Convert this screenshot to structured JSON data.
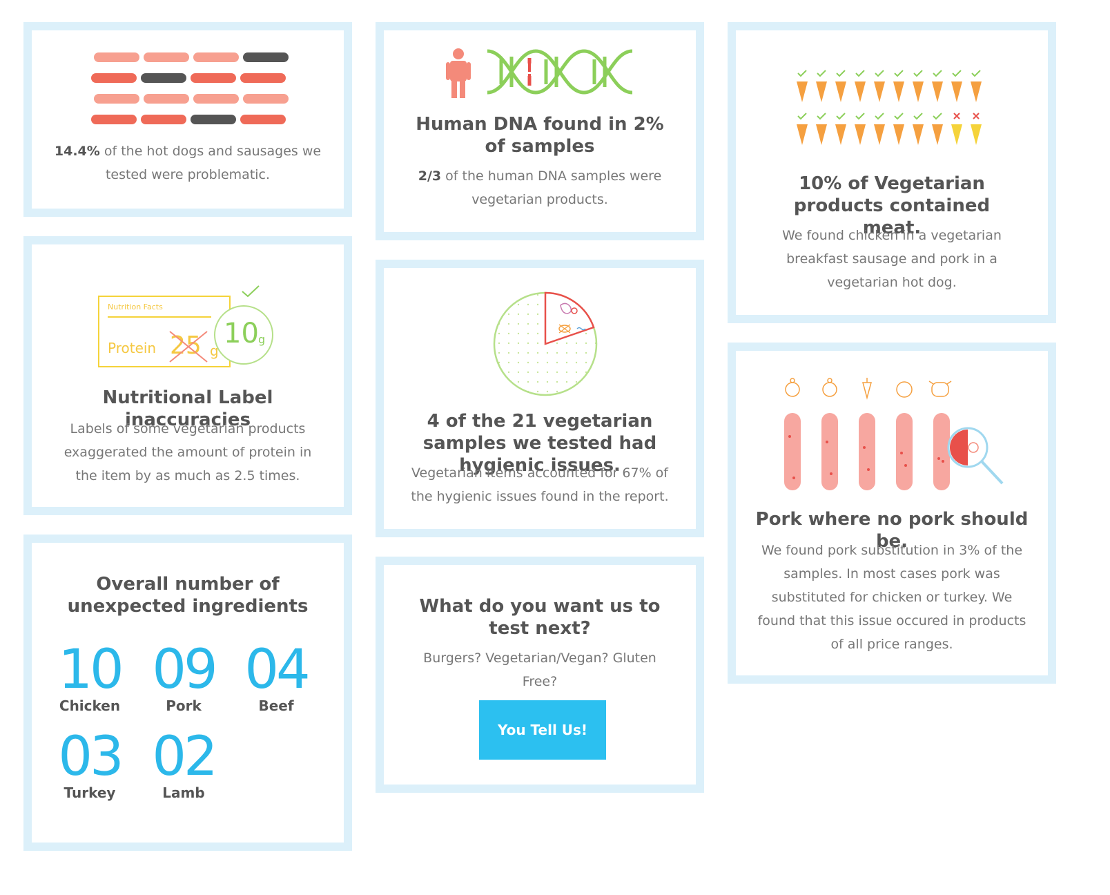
{
  "cards": {
    "hotdogs": {
      "stat": "14.4%",
      "text": " of the hot dogs and sausages we tested were problematic."
    },
    "dna": {
      "title": "Human DNA found in 2% of samples",
      "stat": "2/3",
      "text": " of the human DNA samples were vegetarian products."
    },
    "vegetarian_meat": {
      "title": "10% of Vegetarian products contained meat.",
      "text": "We found chicken in a vegetarian breakfast sausage and pork in a vegetarian hot dog."
    },
    "nutrition": {
      "label_heading": "Nutrition Facts",
      "label_protein": "Protein",
      "label_old": "25",
      "label_unit": "g",
      "label_new": "10",
      "label_new_unit": "g",
      "title": "Nutritional Label inaccuracies",
      "text": "Labels of some vegetarian products exaggerated the amount of protein in the item by as much as 2.5 times."
    },
    "hygiene": {
      "title": "4 of the 21 vegetarian samples we tested had hygienic issues.",
      "text": "Vegetarian items accounted for 67% of the hygienic issues found in the report."
    },
    "pork": {
      "title": "Pork where no pork should be.",
      "text": "We found pork substitution in 3% of the samples. In most cases pork was substituted for chicken or turkey. We found that this issue occured in products of all price ranges."
    },
    "ingredients": {
      "title": "Overall number of unexpected ingredients",
      "stats": [
        {
          "value": "10",
          "label": "Chicken"
        },
        {
          "value": "09",
          "label": "Pork"
        },
        {
          "value": "04",
          "label": "Beef"
        },
        {
          "value": "03",
          "label": "Turkey"
        },
        {
          "value": "02",
          "label": "Lamb"
        }
      ]
    },
    "next": {
      "title": "What do you want us to test next?",
      "text": "Burgers? Vegetarian/Vegan? Gluten Free?",
      "button": "You Tell Us!"
    }
  },
  "icons": {
    "sausage_grid_problem_count": 3,
    "carrot_total": 20,
    "carrot_flagged": 2,
    "pie_problem_share": "4 of 21"
  },
  "colors": {
    "border": "#dcf0fa",
    "accent_blue": "#2cb8ea",
    "button": "#2cc0f0",
    "sausage": "#f48a7a",
    "green": "#8ccf5a",
    "orange": "#f5a040",
    "yellow": "#f5d33a"
  }
}
